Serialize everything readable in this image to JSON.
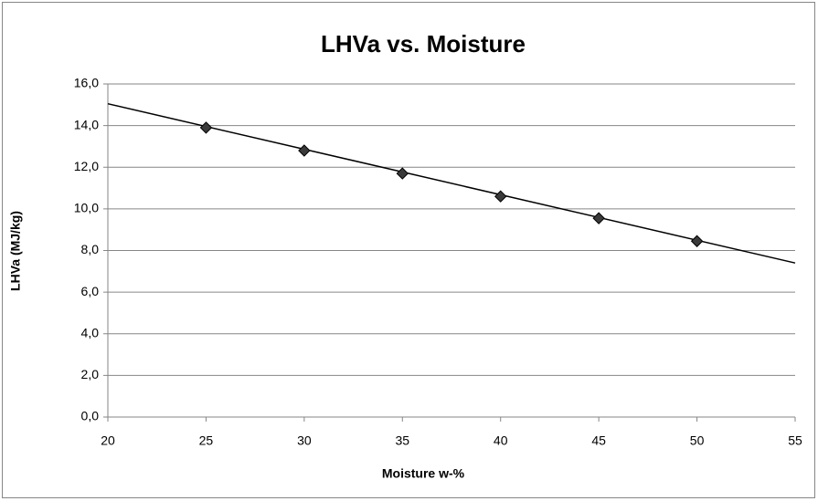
{
  "chart_data": {
    "type": "scatter",
    "title": "LHVa vs. Moisture",
    "xlabel": "Moisture w-%",
    "ylabel": "LHVa (MJ/kg)",
    "series": [
      {
        "x": [
          25,
          30,
          35,
          40,
          45,
          50
        ],
        "values": [
          13.9,
          12.8,
          11.7,
          10.6,
          9.55,
          8.45
        ],
        "color": "#3a3a3a"
      }
    ],
    "trendline": {
      "x": [
        20,
        55
      ],
      "values": [
        15.05,
        7.4
      ],
      "color": "#000000"
    },
    "xlim": [
      20,
      55
    ],
    "xticks": [
      20,
      25,
      30,
      35,
      40,
      45,
      50,
      55
    ],
    "ylim": [
      0,
      16
    ],
    "yticks": [
      {
        "value": 0,
        "label": "0,0"
      },
      {
        "value": 2,
        "label": "2,0"
      },
      {
        "value": 4,
        "label": "4,0"
      },
      {
        "value": 6,
        "label": "6,0"
      },
      {
        "value": 8,
        "label": "8,0"
      },
      {
        "value": 10,
        "label": "10,0"
      },
      {
        "value": 12,
        "label": "12,0"
      },
      {
        "value": 14,
        "label": "14,0"
      },
      {
        "value": 16,
        "label": "16,0"
      }
    ],
    "grid": true
  }
}
